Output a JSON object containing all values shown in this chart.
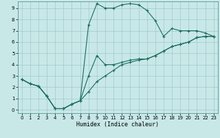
{
  "xlabel": "Humidex (Indice chaleur)",
  "xlim_min": -0.5,
  "xlim_max": 23.5,
  "ylim_min": -0.3,
  "ylim_max": 9.6,
  "xticks": [
    0,
    1,
    2,
    3,
    4,
    5,
    6,
    7,
    8,
    9,
    10,
    11,
    12,
    13,
    14,
    15,
    16,
    17,
    18,
    19,
    20,
    21,
    22,
    23
  ],
  "yticks": [
    0,
    1,
    2,
    3,
    4,
    5,
    6,
    7,
    8,
    9
  ],
  "background_color": "#c8e8e8",
  "grid_color": "#a0c8c8",
  "line_color": "#1a6b5a",
  "curve_upper_x": [
    0,
    1,
    2,
    3,
    4,
    5,
    6,
    7,
    8,
    9,
    10,
    11,
    12,
    13,
    14,
    15,
    16,
    17,
    18,
    19,
    20,
    21,
    22,
    23
  ],
  "curve_upper_y": [
    2.7,
    2.3,
    2.1,
    1.2,
    0.1,
    0.1,
    0.5,
    0.8,
    7.5,
    9.4,
    9.0,
    9.0,
    9.3,
    9.4,
    9.3,
    8.8,
    7.9,
    6.5,
    7.2,
    7.0,
    7.0,
    7.0,
    6.8,
    6.5
  ],
  "curve_mid_x": [
    0,
    1,
    2,
    3,
    4,
    5,
    6,
    7,
    8,
    9,
    10,
    11,
    12,
    13,
    14,
    15,
    16,
    17,
    18,
    19,
    20,
    21,
    22,
    23
  ],
  "curve_mid_y": [
    2.7,
    2.3,
    2.1,
    1.2,
    0.1,
    0.1,
    0.5,
    0.8,
    3.0,
    4.8,
    4.0,
    4.0,
    4.2,
    4.4,
    4.5,
    4.5,
    4.8,
    5.2,
    5.6,
    5.8,
    6.0,
    6.4,
    6.5,
    6.5
  ],
  "curve_low_x": [
    0,
    1,
    2,
    3,
    4,
    5,
    6,
    7,
    8,
    9,
    10,
    11,
    12,
    13,
    14,
    15,
    16,
    17,
    18,
    19,
    20,
    21,
    22,
    23
  ],
  "curve_low_y": [
    2.7,
    2.3,
    2.1,
    1.2,
    0.1,
    0.1,
    0.5,
    0.8,
    1.6,
    2.5,
    3.0,
    3.5,
    4.0,
    4.2,
    4.4,
    4.5,
    4.8,
    5.2,
    5.6,
    5.8,
    6.0,
    6.4,
    6.5,
    6.5
  ]
}
